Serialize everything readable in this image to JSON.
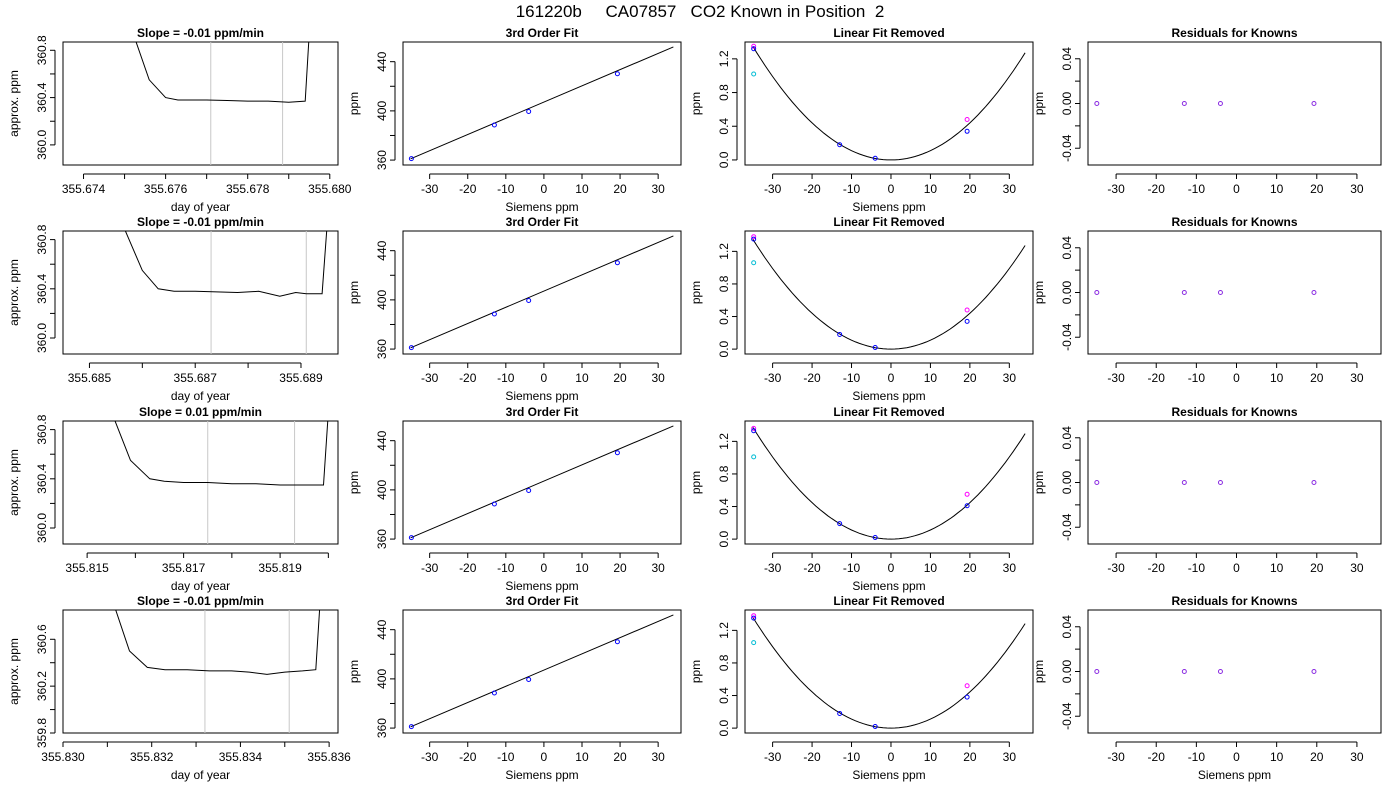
{
  "page": {
    "title": "161220b     CA07857   CO2 Known in Position  2"
  },
  "chart_data": [
    {
      "row": 1,
      "panel": "trace",
      "type": "line",
      "title": "Slope =  -0.01  ppm/min",
      "xlabel": "day of year",
      "ylabel": "approx. ppm",
      "xlim": [
        355.6735,
        355.6802
      ],
      "ylim": [
        359.83,
        360.87
      ],
      "xticks": [
        355.674,
        355.675,
        355.676,
        355.677,
        355.678,
        355.679,
        355.68
      ],
      "xtick_labels": [
        "355.674",
        "",
        "355.676",
        "",
        "355.678",
        "",
        "355.680"
      ],
      "yticks": [
        360.0,
        360.2,
        360.4,
        360.6,
        360.8
      ],
      "ytick_labels": [
        "360.0",
        "",
        "360.4",
        "",
        "360.8"
      ],
      "vlines": [
        355.6771,
        355.67885
      ],
      "x": [
        355.6752,
        355.6756,
        355.676,
        355.6763,
        355.6765,
        355.677,
        355.6775,
        355.678,
        355.6785,
        355.679,
        355.6794,
        355.6795
      ],
      "y": [
        360.95,
        360.55,
        360.4,
        360.38,
        360.38,
        360.38,
        360.375,
        360.37,
        360.37,
        360.36,
        360.37,
        360.95
      ]
    },
    {
      "row": 1,
      "panel": "fit",
      "type": "scatter",
      "title": "3rd Order Fit",
      "xlabel": "Siemens ppm",
      "ylabel": "ppm",
      "xlim": [
        -37,
        36
      ],
      "ylim": [
        356,
        456
      ],
      "xticks": [
        -30,
        -20,
        -10,
        0,
        10,
        20,
        30
      ],
      "xtick_labels": [
        "-30",
        "-20",
        "-10",
        "0",
        "10",
        "20",
        "30"
      ],
      "yticks": [
        360,
        380,
        400,
        420,
        440
      ],
      "ytick_labels": [
        "360",
        "",
        "400",
        "",
        "440"
      ],
      "line": [
        [
          -35,
          361
        ],
        [
          34,
          452
        ]
      ],
      "points": [
        [
          -34.8,
          361.2
        ],
        [
          -13,
          388.5
        ],
        [
          -4,
          399.5
        ],
        [
          19.3,
          430.2
        ]
      ]
    },
    {
      "row": 1,
      "panel": "linear_removed",
      "type": "scatter",
      "title": "Linear Fit Removed",
      "xlabel": "Siemens ppm",
      "ylabel": "ppm",
      "xlim": [
        -37,
        36
      ],
      "ylim": [
        -0.06,
        1.4
      ],
      "xticks": [
        -30,
        -20,
        -10,
        0,
        10,
        20,
        30
      ],
      "xtick_labels": [
        "-30",
        "-20",
        "-10",
        "0",
        "10",
        "20",
        "30"
      ],
      "yticks": [
        0.0,
        0.4,
        0.8,
        1.2
      ],
      "ytick_labels": [
        "0.0",
        "0.4",
        "0.8",
        "1.2"
      ],
      "curve_coef": 0.0011,
      "points": [
        [
          -34.8,
          1.32
        ],
        [
          -13,
          0.18
        ],
        [
          -4,
          0.02
        ],
        [
          19.3,
          0.34
        ]
      ],
      "extra_points": [
        [
          -34.8,
          1.02
        ],
        [
          -34.8,
          1.35
        ],
        [
          19.3,
          0.48
        ]
      ]
    },
    {
      "row": 1,
      "panel": "residuals",
      "type": "scatter",
      "title": "Residuals for Knowns",
      "xlabel": "",
      "ylabel": "ppm",
      "xlim": [
        -37,
        36
      ],
      "ylim": [
        -0.055,
        0.055
      ],
      "xticks": [
        -30,
        -20,
        -10,
        0,
        10,
        20,
        30
      ],
      "xtick_labels": [
        "-30",
        "-20",
        "-10",
        "0",
        "10",
        "20",
        "30"
      ],
      "yticks": [
        -0.04,
        -0.02,
        0.0,
        0.02,
        0.04
      ],
      "ytick_labels": [
        "-0.04",
        "",
        "0.00",
        "",
        "0.04"
      ],
      "points": [
        [
          -34.8,
          0.0
        ],
        [
          -13,
          0.0
        ],
        [
          -4,
          0.0
        ],
        [
          19.3,
          0.0
        ]
      ]
    },
    {
      "row": 2,
      "panel": "trace",
      "type": "line",
      "title": "Slope =  -0.01  ppm/min",
      "xlabel": "day of year",
      "ylabel": "approx. ppm",
      "xlim": [
        355.6845,
        355.6897
      ],
      "ylim": [
        359.87,
        360.87
      ],
      "xticks": [
        355.685,
        355.686,
        355.687,
        355.688,
        355.689
      ],
      "xtick_labels": [
        "355.685",
        "",
        "355.687",
        "",
        "355.689"
      ],
      "yticks": [
        360.0,
        360.2,
        360.4,
        360.6,
        360.8
      ],
      "ytick_labels": [
        "360.0",
        "",
        "360.4",
        "",
        "360.8"
      ],
      "vlines": [
        355.6873,
        355.6891
      ],
      "x": [
        355.6856,
        355.686,
        355.6863,
        355.6866,
        355.687,
        355.6874,
        355.6878,
        355.6882,
        355.6886,
        355.6889,
        355.6891,
        355.6894,
        355.6895
      ],
      "y": [
        360.95,
        360.55,
        360.4,
        360.38,
        360.38,
        360.375,
        360.37,
        360.38,
        360.34,
        360.37,
        360.36,
        360.36,
        360.95
      ]
    },
    {
      "row": 2,
      "panel": "fit",
      "type": "scatter",
      "title": "3rd Order Fit",
      "xlabel": "Siemens ppm",
      "ylabel": "ppm",
      "xlim": [
        -37,
        36
      ],
      "ylim": [
        356,
        456
      ],
      "xticks": [
        -30,
        -20,
        -10,
        0,
        10,
        20,
        30
      ],
      "xtick_labels": [
        "-30",
        "-20",
        "-10",
        "0",
        "10",
        "20",
        "30"
      ],
      "yticks": [
        360,
        380,
        400,
        420,
        440
      ],
      "ytick_labels": [
        "360",
        "",
        "400",
        "",
        "440"
      ],
      "line": [
        [
          -35,
          361
        ],
        [
          34,
          452
        ]
      ],
      "points": [
        [
          -34.8,
          361.2
        ],
        [
          -13,
          388.5
        ],
        [
          -4,
          399.5
        ],
        [
          19.3,
          430.2
        ]
      ]
    },
    {
      "row": 2,
      "panel": "linear_removed",
      "type": "scatter",
      "title": "Linear Fit Removed",
      "xlabel": "Siemens ppm",
      "ylabel": "ppm",
      "xlim": [
        -37,
        36
      ],
      "ylim": [
        -0.06,
        1.45
      ],
      "xticks": [
        -30,
        -20,
        -10,
        0,
        10,
        20,
        30
      ],
      "xtick_labels": [
        "-30",
        "-20",
        "-10",
        "0",
        "10",
        "20",
        "30"
      ],
      "yticks": [
        0.0,
        0.4,
        0.8,
        1.2
      ],
      "ytick_labels": [
        "0.0",
        "0.4",
        "0.8",
        "1.2"
      ],
      "curve_coef": 0.0011,
      "points": [
        [
          -34.8,
          1.35
        ],
        [
          -13,
          0.18
        ],
        [
          -4,
          0.02
        ],
        [
          19.3,
          0.34
        ]
      ],
      "extra_points": [
        [
          -34.8,
          1.06
        ],
        [
          -34.8,
          1.38
        ],
        [
          19.3,
          0.48
        ]
      ]
    },
    {
      "row": 2,
      "panel": "residuals",
      "type": "scatter",
      "title": "Residuals for Knowns",
      "xlabel": "",
      "ylabel": "ppm",
      "xlim": [
        -37,
        36
      ],
      "ylim": [
        -0.055,
        0.055
      ],
      "xticks": [
        -30,
        -20,
        -10,
        0,
        10,
        20,
        30
      ],
      "xtick_labels": [
        "-30",
        "-20",
        "-10",
        "0",
        "10",
        "20",
        "30"
      ],
      "yticks": [
        -0.04,
        -0.02,
        0.0,
        0.02,
        0.04
      ],
      "ytick_labels": [
        "-0.04",
        "",
        "0.00",
        "",
        "0.04"
      ],
      "points": [
        [
          -34.8,
          0.0
        ],
        [
          -13,
          0.0
        ],
        [
          -4,
          0.0
        ],
        [
          19.3,
          0.0
        ]
      ]
    },
    {
      "row": 3,
      "panel": "trace",
      "type": "line",
      "title": "Slope =  0.01  ppm/min",
      "xlabel": "day of year",
      "ylabel": "approx. ppm",
      "xlim": [
        355.8145,
        355.8202
      ],
      "ylim": [
        359.87,
        360.87
      ],
      "xticks": [
        355.815,
        355.816,
        355.817,
        355.818,
        355.819,
        355.82
      ],
      "xtick_labels": [
        "355.815",
        "",
        "355.817",
        "",
        "355.819",
        ""
      ],
      "yticks": [
        360.0,
        360.2,
        360.4,
        360.6,
        360.8
      ],
      "ytick_labels": [
        "360.0",
        "",
        "360.4",
        "",
        "360.8"
      ],
      "vlines": [
        355.8175,
        355.8193
      ],
      "x": [
        355.8155,
        355.8159,
        355.8163,
        355.8166,
        355.817,
        355.8175,
        355.818,
        355.8185,
        355.819,
        355.8195,
        355.8199,
        355.82
      ],
      "y": [
        360.95,
        360.55,
        360.4,
        360.38,
        360.37,
        360.37,
        360.36,
        360.36,
        360.35,
        360.35,
        360.35,
        360.95
      ]
    },
    {
      "row": 3,
      "panel": "fit",
      "type": "scatter",
      "title": "3rd Order Fit",
      "xlabel": "Siemens ppm",
      "ylabel": "ppm",
      "xlim": [
        -37,
        36
      ],
      "ylim": [
        356,
        456
      ],
      "xticks": [
        -30,
        -20,
        -10,
        0,
        10,
        20,
        30
      ],
      "xtick_labels": [
        "-30",
        "-20",
        "-10",
        "0",
        "10",
        "20",
        "30"
      ],
      "yticks": [
        360,
        380,
        400,
        420,
        440
      ],
      "ytick_labels": [
        "360",
        "",
        "400",
        "",
        "440"
      ],
      "line": [
        [
          -35,
          361
        ],
        [
          34,
          452
        ]
      ],
      "points": [
        [
          -34.8,
          361.2
        ],
        [
          -13,
          388.5
        ],
        [
          -4,
          399.5
        ],
        [
          19.3,
          430.2
        ]
      ]
    },
    {
      "row": 3,
      "panel": "linear_removed",
      "type": "scatter",
      "title": "Linear Fit Removed",
      "xlabel": "Siemens ppm",
      "ylabel": "ppm",
      "xlim": [
        -37,
        36
      ],
      "ylim": [
        -0.06,
        1.45
      ],
      "xticks": [
        -30,
        -20,
        -10,
        0,
        10,
        20,
        30
      ],
      "xtick_labels": [
        "-30",
        "-20",
        "-10",
        "0",
        "10",
        "20",
        "30"
      ],
      "yticks": [
        0.0,
        0.4,
        0.8,
        1.2
      ],
      "ytick_labels": [
        "0.0",
        "0.4",
        "0.8",
        "1.2"
      ],
      "curve_coef": 0.00112,
      "points": [
        [
          -34.8,
          1.33
        ],
        [
          -13,
          0.19
        ],
        [
          -4,
          0.02
        ],
        [
          19.3,
          0.41
        ]
      ],
      "extra_points": [
        [
          -34.8,
          1.01
        ],
        [
          -34.8,
          1.36
        ],
        [
          19.3,
          0.55
        ]
      ]
    },
    {
      "row": 3,
      "panel": "residuals",
      "type": "scatter",
      "title": "Residuals for Knowns",
      "xlabel": "",
      "ylabel": "ppm",
      "xlim": [
        -37,
        36
      ],
      "ylim": [
        -0.055,
        0.055
      ],
      "xticks": [
        -30,
        -20,
        -10,
        0,
        10,
        20,
        30
      ],
      "xtick_labels": [
        "-30",
        "-20",
        "-10",
        "0",
        "10",
        "20",
        "30"
      ],
      "yticks": [
        -0.04,
        -0.02,
        0.0,
        0.02,
        0.04
      ],
      "ytick_labels": [
        "-0.04",
        "",
        "0.00",
        "",
        "0.04"
      ],
      "points": [
        [
          -34.8,
          0.0
        ],
        [
          -13,
          0.0
        ],
        [
          -4,
          0.0
        ],
        [
          19.3,
          0.0
        ]
      ]
    },
    {
      "row": 4,
      "panel": "trace",
      "type": "line",
      "title": "Slope =  -0.01  ppm/min",
      "xlabel": "day of year",
      "ylabel": "approx. ppm",
      "xlim": [
        355.83,
        355.8362
      ],
      "ylim": [
        359.8,
        360.85
      ],
      "xticks": [
        355.83,
        355.831,
        355.832,
        355.833,
        355.834,
        355.835,
        355.836
      ],
      "xtick_labels": [
        "355.830",
        "",
        "355.832",
        "",
        "355.834",
        "",
        "355.836"
      ],
      "yticks": [
        359.8,
        360.0,
        360.2,
        360.4,
        360.6
      ],
      "ytick_labels": [
        "359.8",
        "",
        "360.2",
        "",
        "360.6"
      ],
      "vlines": [
        355.8332,
        355.8351
      ],
      "x": [
        355.8311,
        355.8315,
        355.8319,
        355.8323,
        355.8328,
        355.8333,
        355.8338,
        355.8342,
        355.8346,
        355.835,
        355.8354,
        355.8357,
        355.8358
      ],
      "y": [
        360.95,
        360.5,
        360.36,
        360.34,
        360.34,
        360.33,
        360.33,
        360.32,
        360.3,
        360.32,
        360.33,
        360.34,
        360.95
      ]
    },
    {
      "row": 4,
      "panel": "fit",
      "type": "scatter",
      "title": "3rd Order Fit",
      "xlabel": "Siemens ppm",
      "ylabel": "ppm",
      "xlim": [
        -37,
        36
      ],
      "ylim": [
        356,
        456
      ],
      "xticks": [
        -30,
        -20,
        -10,
        0,
        10,
        20,
        30
      ],
      "xtick_labels": [
        "-30",
        "-20",
        "-10",
        "0",
        "10",
        "20",
        "30"
      ],
      "yticks": [
        360,
        380,
        400,
        420,
        440
      ],
      "ytick_labels": [
        "360",
        "",
        "400",
        "",
        "440"
      ],
      "line": [
        [
          -35,
          361
        ],
        [
          34,
          452
        ]
      ],
      "points": [
        [
          -34.8,
          361.2
        ],
        [
          -13,
          388.5
        ],
        [
          -4,
          399.5
        ],
        [
          19.3,
          430.2
        ]
      ]
    },
    {
      "row": 4,
      "panel": "linear_removed",
      "type": "scatter",
      "title": "Linear Fit Removed",
      "xlabel": "Siemens ppm",
      "ylabel": "ppm",
      "xlim": [
        -37,
        36
      ],
      "ylim": [
        -0.06,
        1.45
      ],
      "xticks": [
        -30,
        -20,
        -10,
        0,
        10,
        20,
        30
      ],
      "xtick_labels": [
        "-30",
        "-20",
        "-10",
        "0",
        "10",
        "20",
        "30"
      ],
      "yticks": [
        0.0,
        0.4,
        0.8,
        1.2
      ],
      "ytick_labels": [
        "0.0",
        "0.4",
        "0.8",
        "1.2"
      ],
      "curve_coef": 0.00111,
      "points": [
        [
          -34.8,
          1.35
        ],
        [
          -13,
          0.18
        ],
        [
          -4,
          0.02
        ],
        [
          19.3,
          0.38
        ]
      ],
      "extra_points": [
        [
          -34.8,
          1.05
        ],
        [
          -34.8,
          1.38
        ],
        [
          19.3,
          0.52
        ]
      ]
    },
    {
      "row": 4,
      "panel": "residuals",
      "type": "scatter",
      "title": "Residuals for Knowns",
      "xlabel": "Siemens ppm",
      "ylabel": "ppm",
      "xlim": [
        -37,
        36
      ],
      "ylim": [
        -0.055,
        0.055
      ],
      "xticks": [
        -30,
        -20,
        -10,
        0,
        10,
        20,
        30
      ],
      "xtick_labels": [
        "-30",
        "-20",
        "-10",
        "0",
        "10",
        "20",
        "30"
      ],
      "yticks": [
        -0.04,
        -0.02,
        0.0,
        0.02,
        0.04
      ],
      "ytick_labels": [
        "-0.04",
        "",
        "0.00",
        "",
        "0.04"
      ],
      "points": [
        [
          -34.8,
          0.0
        ],
        [
          -13,
          0.0
        ],
        [
          -4,
          0.0
        ],
        [
          19.3,
          0.0
        ]
      ]
    }
  ],
  "colors": {
    "axis": "#000000",
    "trace_line": "#000000",
    "vline": "#c8c8c8",
    "fit_line": "#000000",
    "point_blue": "#0000ff",
    "point_purple": "#8a2be2",
    "point_magenta": "#ff00ff",
    "point_cyan": "#00bcd4"
  }
}
